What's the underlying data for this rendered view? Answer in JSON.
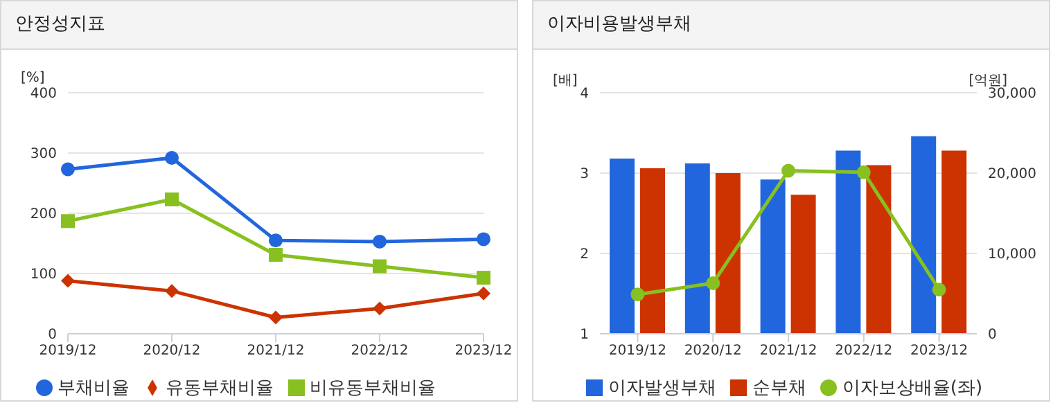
{
  "chart_data": [
    {
      "type": "line",
      "title": "안정성지표",
      "ylabel": "[%]",
      "categories": [
        "2019/12",
        "2020/12",
        "2021/12",
        "2022/12",
        "2023/12"
      ],
      "series": [
        {
          "name": "부채비율",
          "color": "#2266dd",
          "marker": "circle",
          "values": [
            273,
            292,
            155,
            153,
            157
          ]
        },
        {
          "name": "유동부채비율",
          "color": "#cc3300",
          "marker": "diamond",
          "values": [
            88,
            71,
            27,
            42,
            67
          ]
        },
        {
          "name": "비유동부채비율",
          "color": "#88c020",
          "marker": "square",
          "values": [
            187,
            223,
            131,
            112,
            93
          ]
        }
      ],
      "ylim": [
        0,
        400
      ],
      "yticks": [
        0,
        100,
        200,
        300,
        400
      ],
      "grid": "y",
      "legend": "bottom"
    },
    {
      "type": "bar",
      "title": "이자비용발생부채",
      "ylabel": "[배]",
      "y2label": "[억원]",
      "categories": [
        "2019/12",
        "2020/12",
        "2021/12",
        "2022/12",
        "2023/12"
      ],
      "series": [
        {
          "name": "이자발생부채",
          "color": "#2266dd",
          "axis": "y2",
          "values": [
            21800,
            21200,
            19200,
            22800,
            24600
          ]
        },
        {
          "name": "순부채",
          "color": "#cc3300",
          "axis": "y2",
          "values": [
            20600,
            20000,
            17300,
            21000,
            22800
          ]
        },
        {
          "name": "이자보상배율(좌)",
          "type": "line",
          "color": "#88c020",
          "marker": "circle",
          "axis": "y",
          "values": [
            1.49,
            1.63,
            3.03,
            3.01,
            1.55
          ]
        }
      ],
      "ylim": [
        1,
        4
      ],
      "yticks": [
        1,
        2,
        3,
        4
      ],
      "y2lim": [
        0,
        30000
      ],
      "y2ticks": [
        0,
        {
          "value": 10000,
          "label": "10,000"
        },
        {
          "value": 20000,
          "label": "20,000"
        },
        {
          "value": 30000,
          "label": "30,000"
        }
      ],
      "grid": "y",
      "legend": "bottom"
    }
  ]
}
